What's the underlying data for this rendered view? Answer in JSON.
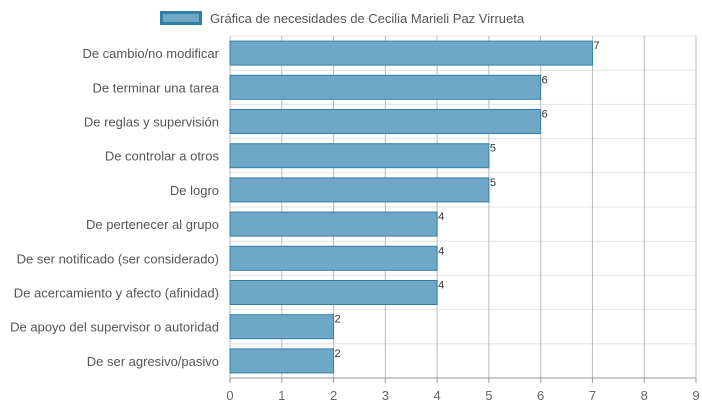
{
  "chart_data": {
    "type": "bar",
    "orientation": "horizontal",
    "legend": {
      "label": "Gráfica de necesidades de Cecilia Marieli Paz Virrueta",
      "position": "top"
    },
    "categories": [
      "De cambio/no modificar",
      "De terminar una tarea",
      "De reglas y supervisión",
      "De controlar a otros",
      "De logro",
      "De pertenecer al grupo",
      "De ser notificado (ser considerado)",
      "De acercamiento y afecto (afinidad)",
      "De apoyo del supervisor o autoridad",
      "De ser agresivo/pasivo"
    ],
    "values": [
      7,
      6,
      6,
      5,
      5,
      4,
      4,
      4,
      2,
      2
    ],
    "xlim": [
      0,
      9
    ],
    "xticks": [
      "0",
      "1",
      "2",
      "3",
      "4",
      "5",
      "6",
      "7",
      "8",
      "9"
    ],
    "grid": true,
    "colors": {
      "bar_fill": "#6fa8c6",
      "bar_stroke": "#2f7fa6",
      "grid": "#bbbbbb"
    }
  }
}
